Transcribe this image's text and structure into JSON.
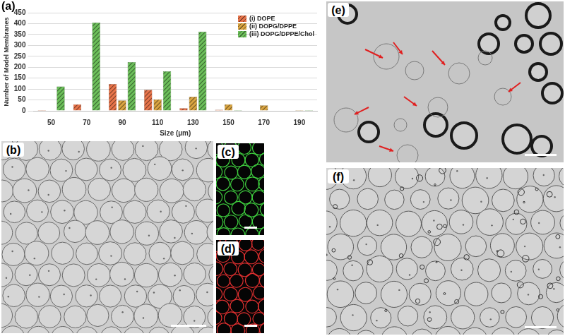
{
  "chart_data": {
    "type": "bar",
    "annotations": [
      "(a)"
    ],
    "x_label": "Size (µm)",
    "y_label": "Number of Model Membranes",
    "categories": [
      "50",
      "70",
      "90",
      "110",
      "130",
      "150",
      "170",
      "190"
    ],
    "series": [
      {
        "name": "(i) DOPE",
        "color": "#e8744a",
        "values": [
          3,
          30,
          123,
          96,
          12,
          5,
          0,
          0
        ]
      },
      {
        "name": "(ii) DOPG/DPPE",
        "color": "#d9a441",
        "values": [
          0,
          2,
          48,
          53,
          65,
          30,
          25,
          3
        ]
      },
      {
        "name": "(iii) DOPG/DPPE/Chol",
        "color": "#6cbf5a",
        "values": [
          112,
          405,
          223,
          181,
          363,
          3,
          0,
          3
        ]
      }
    ],
    "ylim": [
      0,
      450
    ],
    "yticks": [
      0,
      50,
      100,
      150,
      200,
      250,
      300,
      350,
      400,
      450
    ],
    "grid": true,
    "legend": "upper-right"
  },
  "panel_labels": [
    "(b)",
    "(c)",
    "(d)",
    "(e)",
    "(f)"
  ]
}
